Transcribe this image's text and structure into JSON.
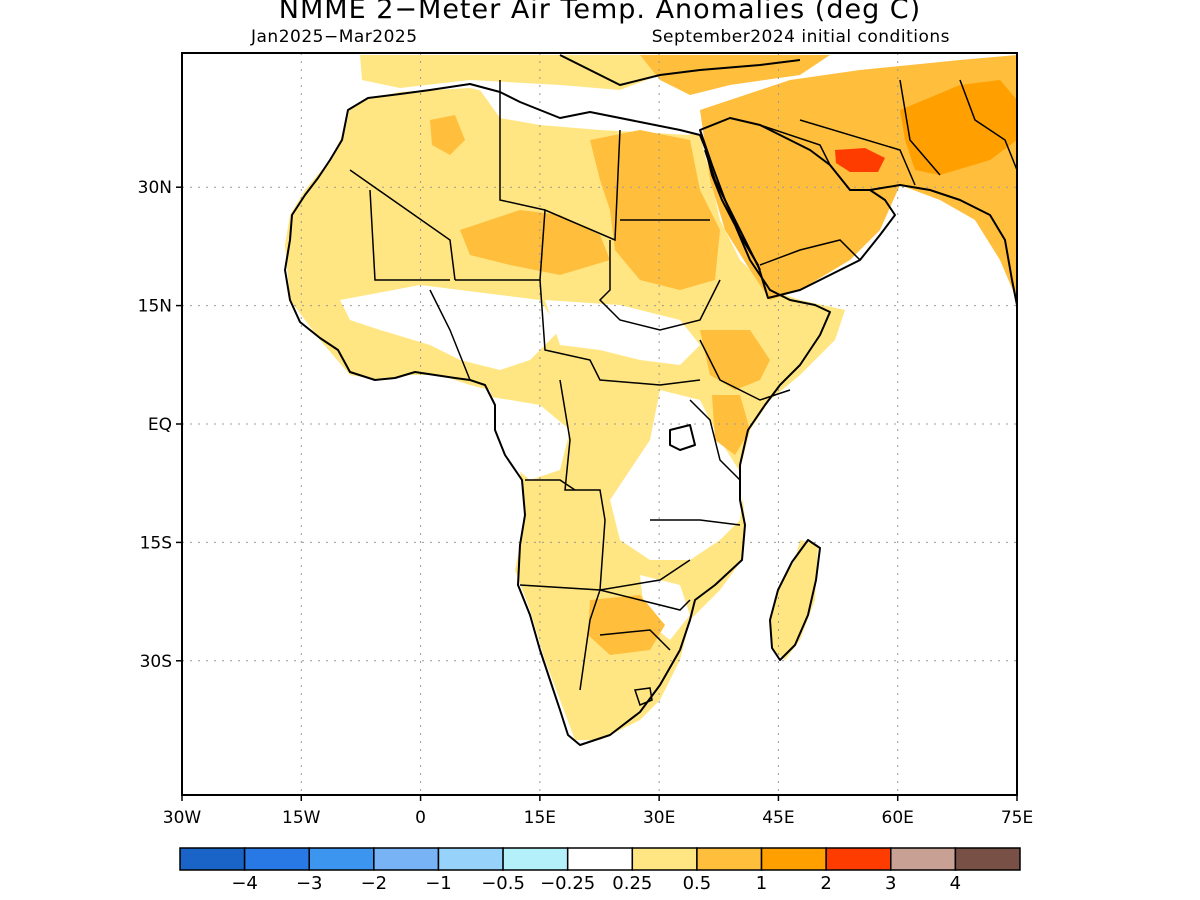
{
  "title": "NMME 2−Meter Air Temp. Anomalies (deg C)",
  "subtitle_left": "Jan2025−Mar2025",
  "subtitle_right": "September2024 initial conditions",
  "map": {
    "lon_range": [
      -30,
      75
    ],
    "lat_range": [
      -47,
      47
    ],
    "x_ticks": [
      "30W",
      "15W",
      "0",
      "15E",
      "30E",
      "45E",
      "60E",
      "75E"
    ],
    "x_tick_values": [
      -30,
      -15,
      0,
      15,
      30,
      45,
      60,
      75
    ],
    "y_ticks": [
      "30N",
      "15N",
      "EQ",
      "15S",
      "30S"
    ],
    "y_tick_values": [
      30,
      15,
      0,
      -15,
      -30
    ],
    "grid": true,
    "region": "Africa"
  },
  "colorbar": {
    "colors": [
      "#1a64c8",
      "#2878e6",
      "#3c96f0",
      "#78b4f5",
      "#96d2fa",
      "#b4f0fa",
      "#ffffff",
      "#ffe682",
      "#ffbe3c",
      "#ffa000",
      "#ff3c00",
      "#c8a094",
      "#785046"
    ],
    "labels": [
      "−4",
      "−3",
      "−2",
      "−1",
      "−0.5",
      "−0.25",
      "0.25",
      "0.5",
      "1",
      "2",
      "3",
      "4"
    ]
  }
}
